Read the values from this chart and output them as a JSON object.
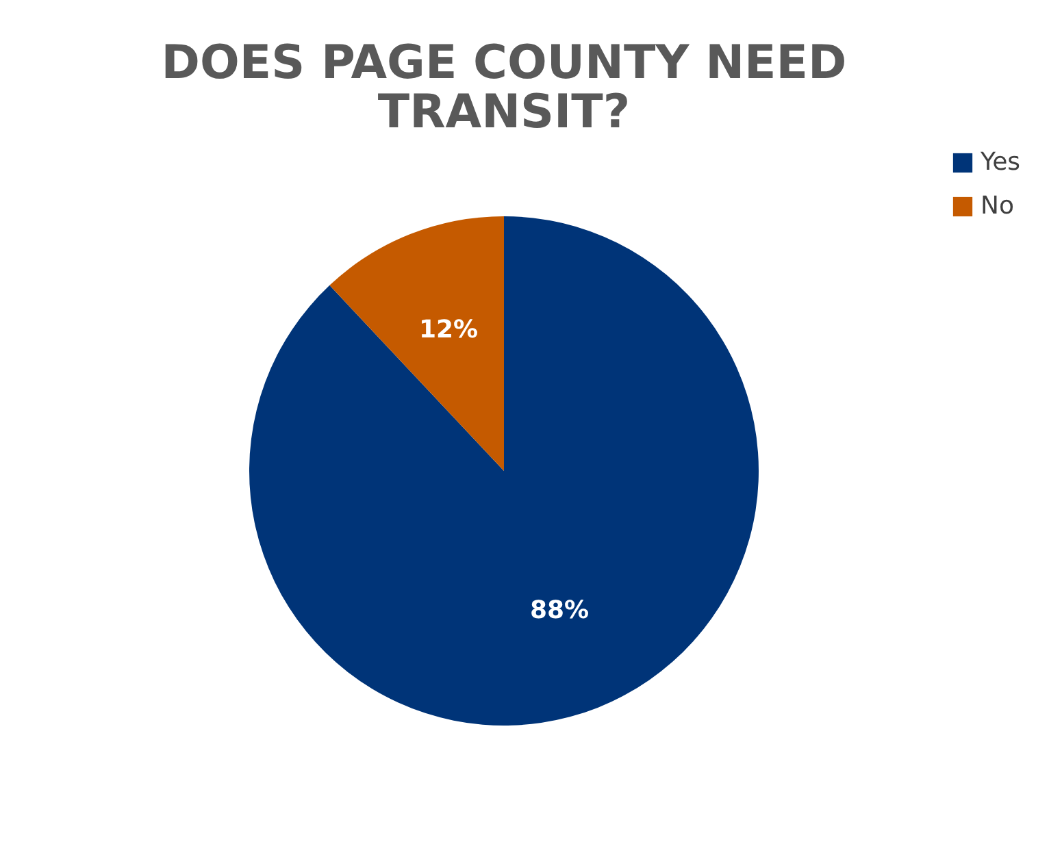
{
  "chart_data": {
    "type": "pie",
    "title": "DOES PAGE COUNTY NEED TRANSIT?",
    "categories": [
      "Yes",
      "No"
    ],
    "values": [
      88,
      12
    ],
    "colors": [
      "#003478",
      "#c55a00"
    ],
    "value_labels": [
      "88%",
      "12%"
    ],
    "legend": "right"
  }
}
